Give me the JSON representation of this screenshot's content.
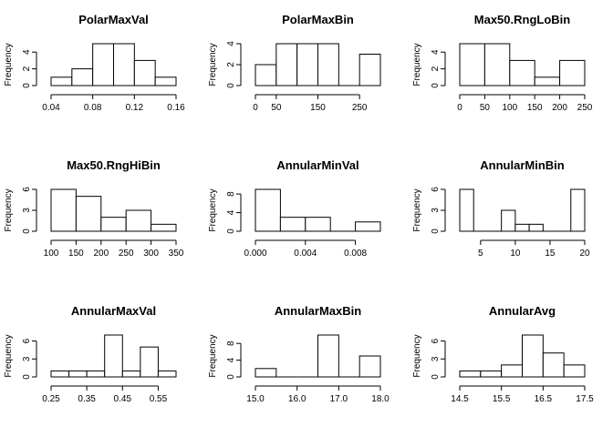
{
  "chart_data": [
    {
      "type": "bar",
      "title": "PolarMaxVal",
      "ylabel": "Frequency",
      "breaks": [
        0.04,
        0.06,
        0.08,
        0.1,
        0.12,
        0.14,
        0.16
      ],
      "counts": [
        1,
        2,
        5,
        5,
        3,
        1
      ],
      "xticks": [
        0.04,
        0.08,
        0.12,
        0.16
      ],
      "xtick_labels": [
        "0.04",
        "0.08",
        "0.12",
        "0.16"
      ],
      "yticks": [
        0,
        2,
        4
      ],
      "xlim": [
        0.04,
        0.16
      ],
      "ylim": [
        0,
        5
      ]
    },
    {
      "type": "bar",
      "title": "PolarMaxBin",
      "ylabel": "Frequency",
      "breaks": [
        0,
        50,
        100,
        150,
        200,
        250,
        300
      ],
      "counts": [
        2,
        4,
        4,
        4,
        0,
        3
      ],
      "xticks": [
        0,
        50,
        150,
        250
      ],
      "xtick_labels": [
        "0",
        "50",
        "150",
        "250"
      ],
      "yticks": [
        0,
        2,
        4
      ],
      "xlim": [
        0,
        300
      ],
      "ylim": [
        0,
        4
      ]
    },
    {
      "type": "bar",
      "title": "Max50.RngLoBin",
      "ylabel": "Frequency",
      "breaks": [
        0,
        50,
        100,
        150,
        200,
        250
      ],
      "counts": [
        5,
        5,
        3,
        1,
        3
      ],
      "xticks": [
        0,
        50,
        100,
        150,
        200,
        250
      ],
      "xtick_labels": [
        "0",
        "50",
        "100",
        "150",
        "200",
        "250"
      ],
      "yticks": [
        0,
        2,
        4
      ],
      "xlim": [
        0,
        250
      ],
      "ylim": [
        0,
        5
      ]
    },
    {
      "type": "bar",
      "title": "Max50.RngHiBin",
      "ylabel": "Frequency",
      "breaks": [
        100,
        150,
        200,
        250,
        300,
        350
      ],
      "counts": [
        6,
        5,
        2,
        3,
        1
      ],
      "xticks": [
        100,
        150,
        200,
        250,
        300,
        350
      ],
      "xtick_labels": [
        "100",
        "150",
        "200",
        "250",
        "300",
        "350"
      ],
      "yticks": [
        0,
        3,
        6
      ],
      "xlim": [
        100,
        350
      ],
      "ylim": [
        0,
        6
      ]
    },
    {
      "type": "bar",
      "title": "AnnularMinVal",
      "ylabel": "Frequency",
      "breaks": [
        0.0,
        0.002,
        0.004,
        0.006,
        0.008,
        0.01
      ],
      "counts": [
        9,
        3,
        3,
        0,
        2
      ],
      "xticks": [
        0.0,
        0.004,
        0.008
      ],
      "xtick_labels": [
        "0.000",
        "0.004",
        "0.008"
      ],
      "yticks": [
        0,
        4,
        8
      ],
      "xlim": [
        0,
        0.01
      ],
      "ylim": [
        0,
        9
      ]
    },
    {
      "type": "bar",
      "title": "AnnularMinBin",
      "ylabel": "Frequency",
      "breaks": [
        2,
        4,
        6,
        8,
        10,
        12,
        14,
        16,
        18,
        20
      ],
      "counts": [
        6,
        0,
        0,
        3,
        1,
        1,
        0,
        0,
        6
      ],
      "xticks": [
        5,
        10,
        15,
        20
      ],
      "xtick_labels": [
        "5",
        "10",
        "15",
        "20"
      ],
      "yticks": [
        0,
        3,
        6
      ],
      "xlim": [
        2,
        20
      ],
      "ylim": [
        0,
        6
      ]
    },
    {
      "type": "bar",
      "title": "AnnularMaxVal",
      "ylabel": "Frequency",
      "breaks": [
        0.25,
        0.3,
        0.35,
        0.4,
        0.45,
        0.5,
        0.55,
        0.6
      ],
      "counts": [
        1,
        1,
        1,
        7,
        1,
        5,
        1
      ],
      "xticks": [
        0.25,
        0.35,
        0.45,
        0.55
      ],
      "xtick_labels": [
        "0.25",
        "0.35",
        "0.45",
        "0.55"
      ],
      "yticks": [
        0,
        3,
        6
      ],
      "xlim": [
        0.25,
        0.6
      ],
      "ylim": [
        0,
        7
      ]
    },
    {
      "type": "bar",
      "title": "AnnularMaxBin",
      "ylabel": "Frequency",
      "breaks": [
        15.0,
        15.5,
        16.0,
        16.5,
        17.0,
        17.5,
        18.0
      ],
      "counts": [
        2,
        0,
        0,
        10,
        0,
        5
      ],
      "xticks": [
        15.0,
        16.0,
        17.0,
        18.0
      ],
      "xtick_labels": [
        "15.0",
        "16.0",
        "17.0",
        "18.0"
      ],
      "yticks": [
        0,
        4,
        8
      ],
      "xlim": [
        15,
        18
      ],
      "ylim": [
        0,
        10
      ]
    },
    {
      "type": "bar",
      "title": "AnnularAvg",
      "ylabel": "Frequency",
      "breaks": [
        14.5,
        15.0,
        15.5,
        16.0,
        16.5,
        17.0,
        17.5
      ],
      "counts": [
        1,
        1,
        2,
        7,
        4,
        2
      ],
      "xticks": [
        14.5,
        15.5,
        16.5,
        17.5
      ],
      "xtick_labels": [
        "14.5",
        "15.5",
        "16.5",
        "17.5"
      ],
      "yticks": [
        0,
        3,
        6
      ],
      "xlim": [
        14.5,
        17.5
      ],
      "ylim": [
        0,
        7
      ]
    }
  ]
}
